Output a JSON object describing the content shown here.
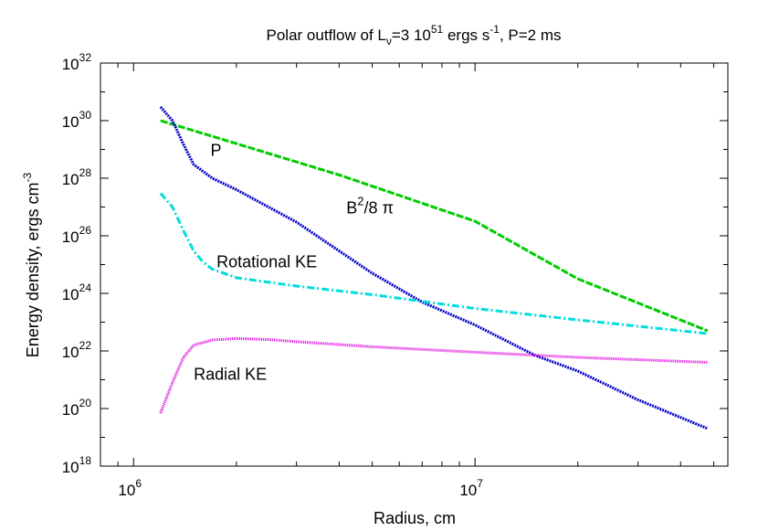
{
  "chart_data": {
    "type": "line",
    "title": {
      "prefix": "Polar outflow of L",
      "sub": "ν",
      "mid1": "=3 10",
      "sup1": "51",
      "mid2": " ergs s",
      "sup2": "-1",
      "suffix": ", P=2 ms"
    },
    "xlabel": "Radius, cm",
    "ylabel": {
      "main": "Energy density, ergs cm",
      "sup": "-3"
    },
    "x_scale": "log",
    "y_scale": "log",
    "xlim": [
      800000,
      55000000
    ],
    "ylim": [
      1e+18,
      1e+32
    ],
    "x_ticks": [
      {
        "value": 1000000,
        "base": "10",
        "exp": "6"
      },
      {
        "value": 10000000,
        "base": "10",
        "exp": "7"
      }
    ],
    "y_ticks": [
      {
        "value": 1e+18,
        "base": "10",
        "exp": "18"
      },
      {
        "value": 1e+20,
        "base": "10",
        "exp": "20"
      },
      {
        "value": 1e+22,
        "base": "10",
        "exp": "22"
      },
      {
        "value": 1e+24,
        "base": "10",
        "exp": "24"
      },
      {
        "value": 1e+26,
        "base": "10",
        "exp": "26"
      },
      {
        "value": 1e+28,
        "base": "10",
        "exp": "28"
      },
      {
        "value": 1e+30,
        "base": "10",
        "exp": "30"
      },
      {
        "value": 1e+32,
        "base": "10",
        "exp": "32"
      }
    ],
    "series": [
      {
        "color": "#00cc00",
        "dash": "8,2",
        "x": [
          1200000,
          2000000,
          4000000,
          10000000,
          20000000,
          48000000
        ],
        "y": [
          1e+30,
          1.6e+29,
          1.3e+28,
          3.2e+26,
          3.2e+24,
          5e+22
        ]
      },
      {
        "color": "#0000cc",
        "dash": "2,1",
        "x": [
          1200000,
          1300000,
          1400000,
          1500000,
          1700000,
          2000000,
          3000000,
          5000000,
          7000000,
          10000000,
          15000000,
          20000000,
          30000000,
          48000000
        ],
        "y": [
          3e+30,
          1e+30,
          1.5e+29,
          3e+28,
          1e+28,
          4e+27,
          3e+26,
          5e+24,
          5e+23,
          8e+22,
          7e+21,
          2e+21,
          2e+20,
          2e+19
        ]
      },
      {
        "color": "#00dddd",
        "dash": "8,3,2,3",
        "x": [
          1200000,
          1300000,
          1400000,
          1500000,
          1600000,
          1700000,
          2000000,
          3000000,
          5000000,
          10000000,
          20000000,
          48000000
        ],
        "y": [
          3e+27,
          1e+27,
          1.5e+26,
          3e+25,
          1.2e+25,
          7e+24,
          3.5e+24,
          1.8e+24,
          9e+23,
          3e+23,
          1.2e+23,
          4e+22
        ]
      },
      {
        "color": "#dd00dd",
        "dash": "1,1",
        "x": [
          1200000,
          1300000,
          1400000,
          1500000,
          1700000,
          2000000,
          2500000,
          3000000,
          5000000,
          10000000,
          20000000,
          48000000
        ],
        "y": [
          7e+19,
          8e+20,
          6e+21,
          1.6e+22,
          2.4e+22,
          2.7e+22,
          2.5e+22,
          2.1e+22,
          1.4e+22,
          9e+21,
          6e+21,
          4e+21
        ]
      }
    ],
    "annotations": [
      {
        "text": "P",
        "x": 1680000,
        "y": 6e+28
      },
      {
        "text": "B",
        "sup": "2",
        "after": "/8 π",
        "x": 4200000,
        "y": 6e+26
      },
      {
        "text": "Rotational KE",
        "x": 1750000,
        "y": 8e+24
      },
      {
        "text": "Radial KE",
        "x": 1500000,
        "y": 1e+21
      }
    ]
  }
}
